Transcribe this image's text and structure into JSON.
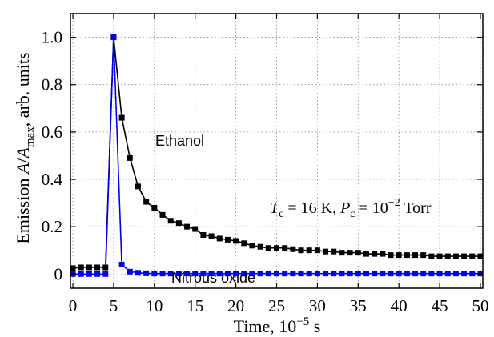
{
  "chart_data": {
    "type": "line",
    "xlabel": "Time, 10",
    "xlabel_sup": "−5",
    "xlabel_suffix": " s",
    "ylabel_prefix": "Emission ",
    "ylabel_italic_A": "A",
    "ylabel_slash": "/",
    "ylabel_italic_A2": "A",
    "ylabel_sub": "max",
    "ylabel_suffix": ", arb. units",
    "xlim": [
      -0.3,
      50.3
    ],
    "ylim": [
      -0.06,
      1.1
    ],
    "xticks": [
      0,
      5,
      10,
      15,
      20,
      25,
      30,
      35,
      40,
      45,
      50
    ],
    "xtick_labels": [
      "0",
      "5",
      "10",
      "15",
      "20",
      "25",
      "30",
      "35",
      "40",
      "45",
      "50"
    ],
    "yticks": [
      0,
      0.2,
      0.4,
      0.6,
      0.8,
      1.0
    ],
    "ytick_labels": [
      "0",
      "0.2",
      "0.4",
      "0.6",
      "0.8",
      "1.0"
    ],
    "grid": true,
    "grid_style": "dotted",
    "series": [
      {
        "name": "Ethanol",
        "color": "#000000",
        "x": [
          0,
          1,
          2,
          3,
          4,
          5,
          6,
          7,
          8,
          9,
          10,
          11,
          12,
          13,
          14,
          15,
          16,
          17,
          18,
          19,
          20,
          21,
          22,
          23,
          24,
          25,
          26,
          27,
          28,
          29,
          30,
          31,
          32,
          33,
          34,
          35,
          36,
          37,
          38,
          39,
          40,
          41,
          42,
          43,
          44,
          45,
          46,
          47,
          48,
          49,
          50
        ],
        "values": [
          0.025,
          0.028,
          0.028,
          0.028,
          0.028,
          1.0,
          0.66,
          0.49,
          0.37,
          0.305,
          0.28,
          0.25,
          0.225,
          0.215,
          0.2,
          0.19,
          0.165,
          0.16,
          0.15,
          0.145,
          0.14,
          0.13,
          0.12,
          0.115,
          0.11,
          0.11,
          0.11,
          0.105,
          0.1,
          0.1,
          0.1,
          0.095,
          0.095,
          0.09,
          0.09,
          0.09,
          0.085,
          0.085,
          0.085,
          0.08,
          0.08,
          0.08,
          0.08,
          0.08,
          0.075,
          0.075,
          0.075,
          0.075,
          0.075,
          0.075,
          0.075
        ]
      },
      {
        "name": "Nitrous oxide",
        "color": "#0000ee",
        "x": [
          0,
          1,
          2,
          3,
          4,
          5,
          6,
          7,
          8,
          9,
          10,
          11,
          12,
          13,
          14,
          15,
          16,
          17,
          18,
          19,
          20,
          21,
          22,
          23,
          24,
          25,
          26,
          27,
          28,
          29,
          30,
          31,
          32,
          33,
          34,
          35,
          36,
          37,
          38,
          39,
          40,
          41,
          42,
          43,
          44,
          45,
          46,
          47,
          48,
          49,
          50
        ],
        "values": [
          0,
          0,
          0,
          0,
          0,
          1.0,
          0.04,
          0.01,
          0.005,
          0.003,
          0.002,
          0.002,
          0.002,
          0.002,
          0.002,
          0.002,
          0.002,
          0.002,
          0.002,
          0.002,
          0.002,
          0.002,
          0.002,
          0.002,
          0.002,
          0.002,
          0.002,
          0.002,
          0.002,
          0.002,
          0.002,
          0.002,
          0.002,
          0.002,
          0.002,
          0.002,
          0.002,
          0.002,
          0.002,
          0.002,
          0.002,
          0.002,
          0.002,
          0.002,
          0.002,
          0.002,
          0.002,
          0.002,
          0.002,
          0.002,
          0.002
        ]
      }
    ],
    "annotations": {
      "ethanol_label": "Ethanol",
      "nitrous_label": "Nitrous oxide",
      "cond_T": "T",
      "cond_T_sub": "c",
      "cond_T_rest": " = 16 K, ",
      "cond_P": "P",
      "cond_P_sub": "c",
      "cond_P_rest": " = 10",
      "cond_P_sup": "−2",
      "cond_P_unit": " Torr"
    }
  }
}
